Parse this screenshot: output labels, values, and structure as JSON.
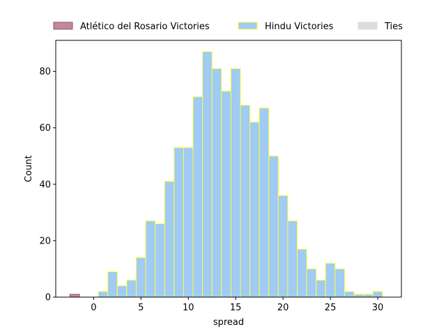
{
  "chart_data": {
    "type": "bar",
    "title": "",
    "xlabel": "spread",
    "ylabel": "Count",
    "xlim": [
      -4,
      32.5
    ],
    "ylim": [
      0,
      91
    ],
    "xticks": [
      0,
      5,
      10,
      15,
      20,
      25,
      30
    ],
    "yticks": [
      0,
      20,
      40,
      60,
      80
    ],
    "grid": false,
    "legend_placement": "top, outside plot",
    "bin_width": 1,
    "series": [
      {
        "name": "Atlético del Rosario Victories",
        "color": "#c08a97",
        "edge_color": "#9b4a62",
        "bins": [
          {
            "x": -2,
            "count": 1
          }
        ]
      },
      {
        "name": "Hindu Victories",
        "color": "#9fcbf5",
        "edge_color": "#ffff33",
        "bins": [
          {
            "x": 1,
            "count": 2
          },
          {
            "x": 2,
            "count": 9
          },
          {
            "x": 3,
            "count": 4
          },
          {
            "x": 4,
            "count": 6
          },
          {
            "x": 5,
            "count": 14
          },
          {
            "x": 6,
            "count": 27
          },
          {
            "x": 7,
            "count": 26
          },
          {
            "x": 8,
            "count": 41
          },
          {
            "x": 9,
            "count": 53
          },
          {
            "x": 10,
            "count": 53
          },
          {
            "x": 11,
            "count": 71
          },
          {
            "x": 12,
            "count": 87
          },
          {
            "x": 13,
            "count": 81
          },
          {
            "x": 14,
            "count": 73
          },
          {
            "x": 15,
            "count": 81
          },
          {
            "x": 16,
            "count": 68
          },
          {
            "x": 17,
            "count": 62
          },
          {
            "x": 18,
            "count": 67
          },
          {
            "x": 19,
            "count": 50
          },
          {
            "x": 20,
            "count": 36
          },
          {
            "x": 21,
            "count": 27
          },
          {
            "x": 22,
            "count": 17
          },
          {
            "x": 23,
            "count": 10
          },
          {
            "x": 24,
            "count": 6
          },
          {
            "x": 25,
            "count": 12
          },
          {
            "x": 26,
            "count": 10
          },
          {
            "x": 27,
            "count": 2
          },
          {
            "x": 28,
            "count": 1
          },
          {
            "x": 29,
            "count": 1
          },
          {
            "x": 30,
            "count": 2
          }
        ]
      },
      {
        "name": "Ties",
        "color": "#dcdcdc",
        "edge_color": "#dcdcdc",
        "bins": []
      }
    ]
  }
}
